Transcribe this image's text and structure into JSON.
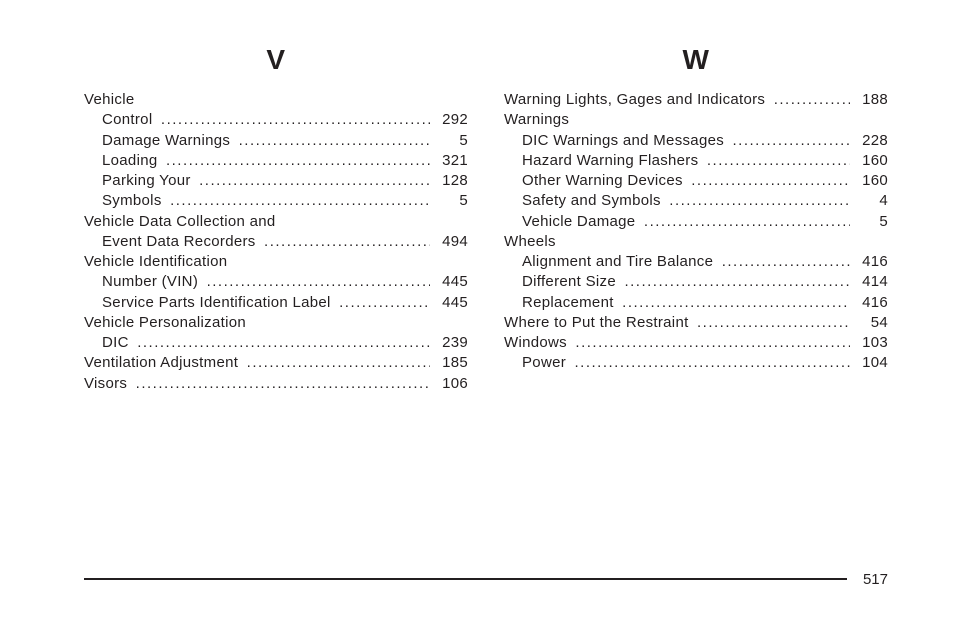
{
  "page_number": "517",
  "dot_char": ".",
  "columns": [
    {
      "letter": "V",
      "items": [
        {
          "label": "Vehicle",
          "page": "",
          "indent": 0,
          "dots": false
        },
        {
          "label": "Control",
          "page": "292",
          "indent": 1,
          "dots": true
        },
        {
          "label": "Damage Warnings",
          "page": "5",
          "indent": 1,
          "dots": true
        },
        {
          "label": "Loading",
          "page": "321",
          "indent": 1,
          "dots": true
        },
        {
          "label": "Parking Your",
          "page": "128",
          "indent": 1,
          "dots": true
        },
        {
          "label": "Symbols",
          "page": "5",
          "indent": 1,
          "dots": true
        },
        {
          "label": "Vehicle Data Collection and",
          "page": "",
          "indent": 0,
          "dots": false
        },
        {
          "label": "Event Data Recorders",
          "page": "494",
          "indent": 1,
          "dots": true
        },
        {
          "label": "Vehicle Identification",
          "page": "",
          "indent": 0,
          "dots": false
        },
        {
          "label": "Number (VIN)",
          "page": "445",
          "indent": 1,
          "dots": true
        },
        {
          "label": "Service Parts Identification Label",
          "page": "445",
          "indent": 1,
          "dots": true
        },
        {
          "label": "Vehicle Personalization",
          "page": "",
          "indent": 0,
          "dots": false
        },
        {
          "label": "DIC",
          "page": "239",
          "indent": 1,
          "dots": true
        },
        {
          "label": "Ventilation Adjustment",
          "page": "185",
          "indent": 0,
          "dots": true
        },
        {
          "label": "Visors",
          "page": "106",
          "indent": 0,
          "dots": true
        }
      ]
    },
    {
      "letter": "W",
      "items": [
        {
          "label": "Warning Lights, Gages and Indicators",
          "page": "188",
          "indent": 0,
          "dots": true
        },
        {
          "label": "Warnings",
          "page": "",
          "indent": 0,
          "dots": false
        },
        {
          "label": "DIC Warnings and Messages",
          "page": "228",
          "indent": 1,
          "dots": true
        },
        {
          "label": "Hazard Warning Flashers",
          "page": "160",
          "indent": 1,
          "dots": true
        },
        {
          "label": "Other Warning Devices",
          "page": "160",
          "indent": 1,
          "dots": true
        },
        {
          "label": "Safety and Symbols",
          "page": "4",
          "indent": 1,
          "dots": true
        },
        {
          "label": "Vehicle Damage",
          "page": "5",
          "indent": 1,
          "dots": true
        },
        {
          "label": "Wheels",
          "page": "",
          "indent": 0,
          "dots": false
        },
        {
          "label": "Alignment and Tire Balance",
          "page": "416",
          "indent": 1,
          "dots": true
        },
        {
          "label": "Different Size",
          "page": "414",
          "indent": 1,
          "dots": true
        },
        {
          "label": "Replacement",
          "page": "416",
          "indent": 1,
          "dots": true
        },
        {
          "label": "Where to Put the Restraint",
          "page": "54",
          "indent": 0,
          "dots": true
        },
        {
          "label": "Windows",
          "page": "103",
          "indent": 0,
          "dots": true
        },
        {
          "label": "Power",
          "page": "104",
          "indent": 1,
          "dots": true
        }
      ]
    }
  ]
}
